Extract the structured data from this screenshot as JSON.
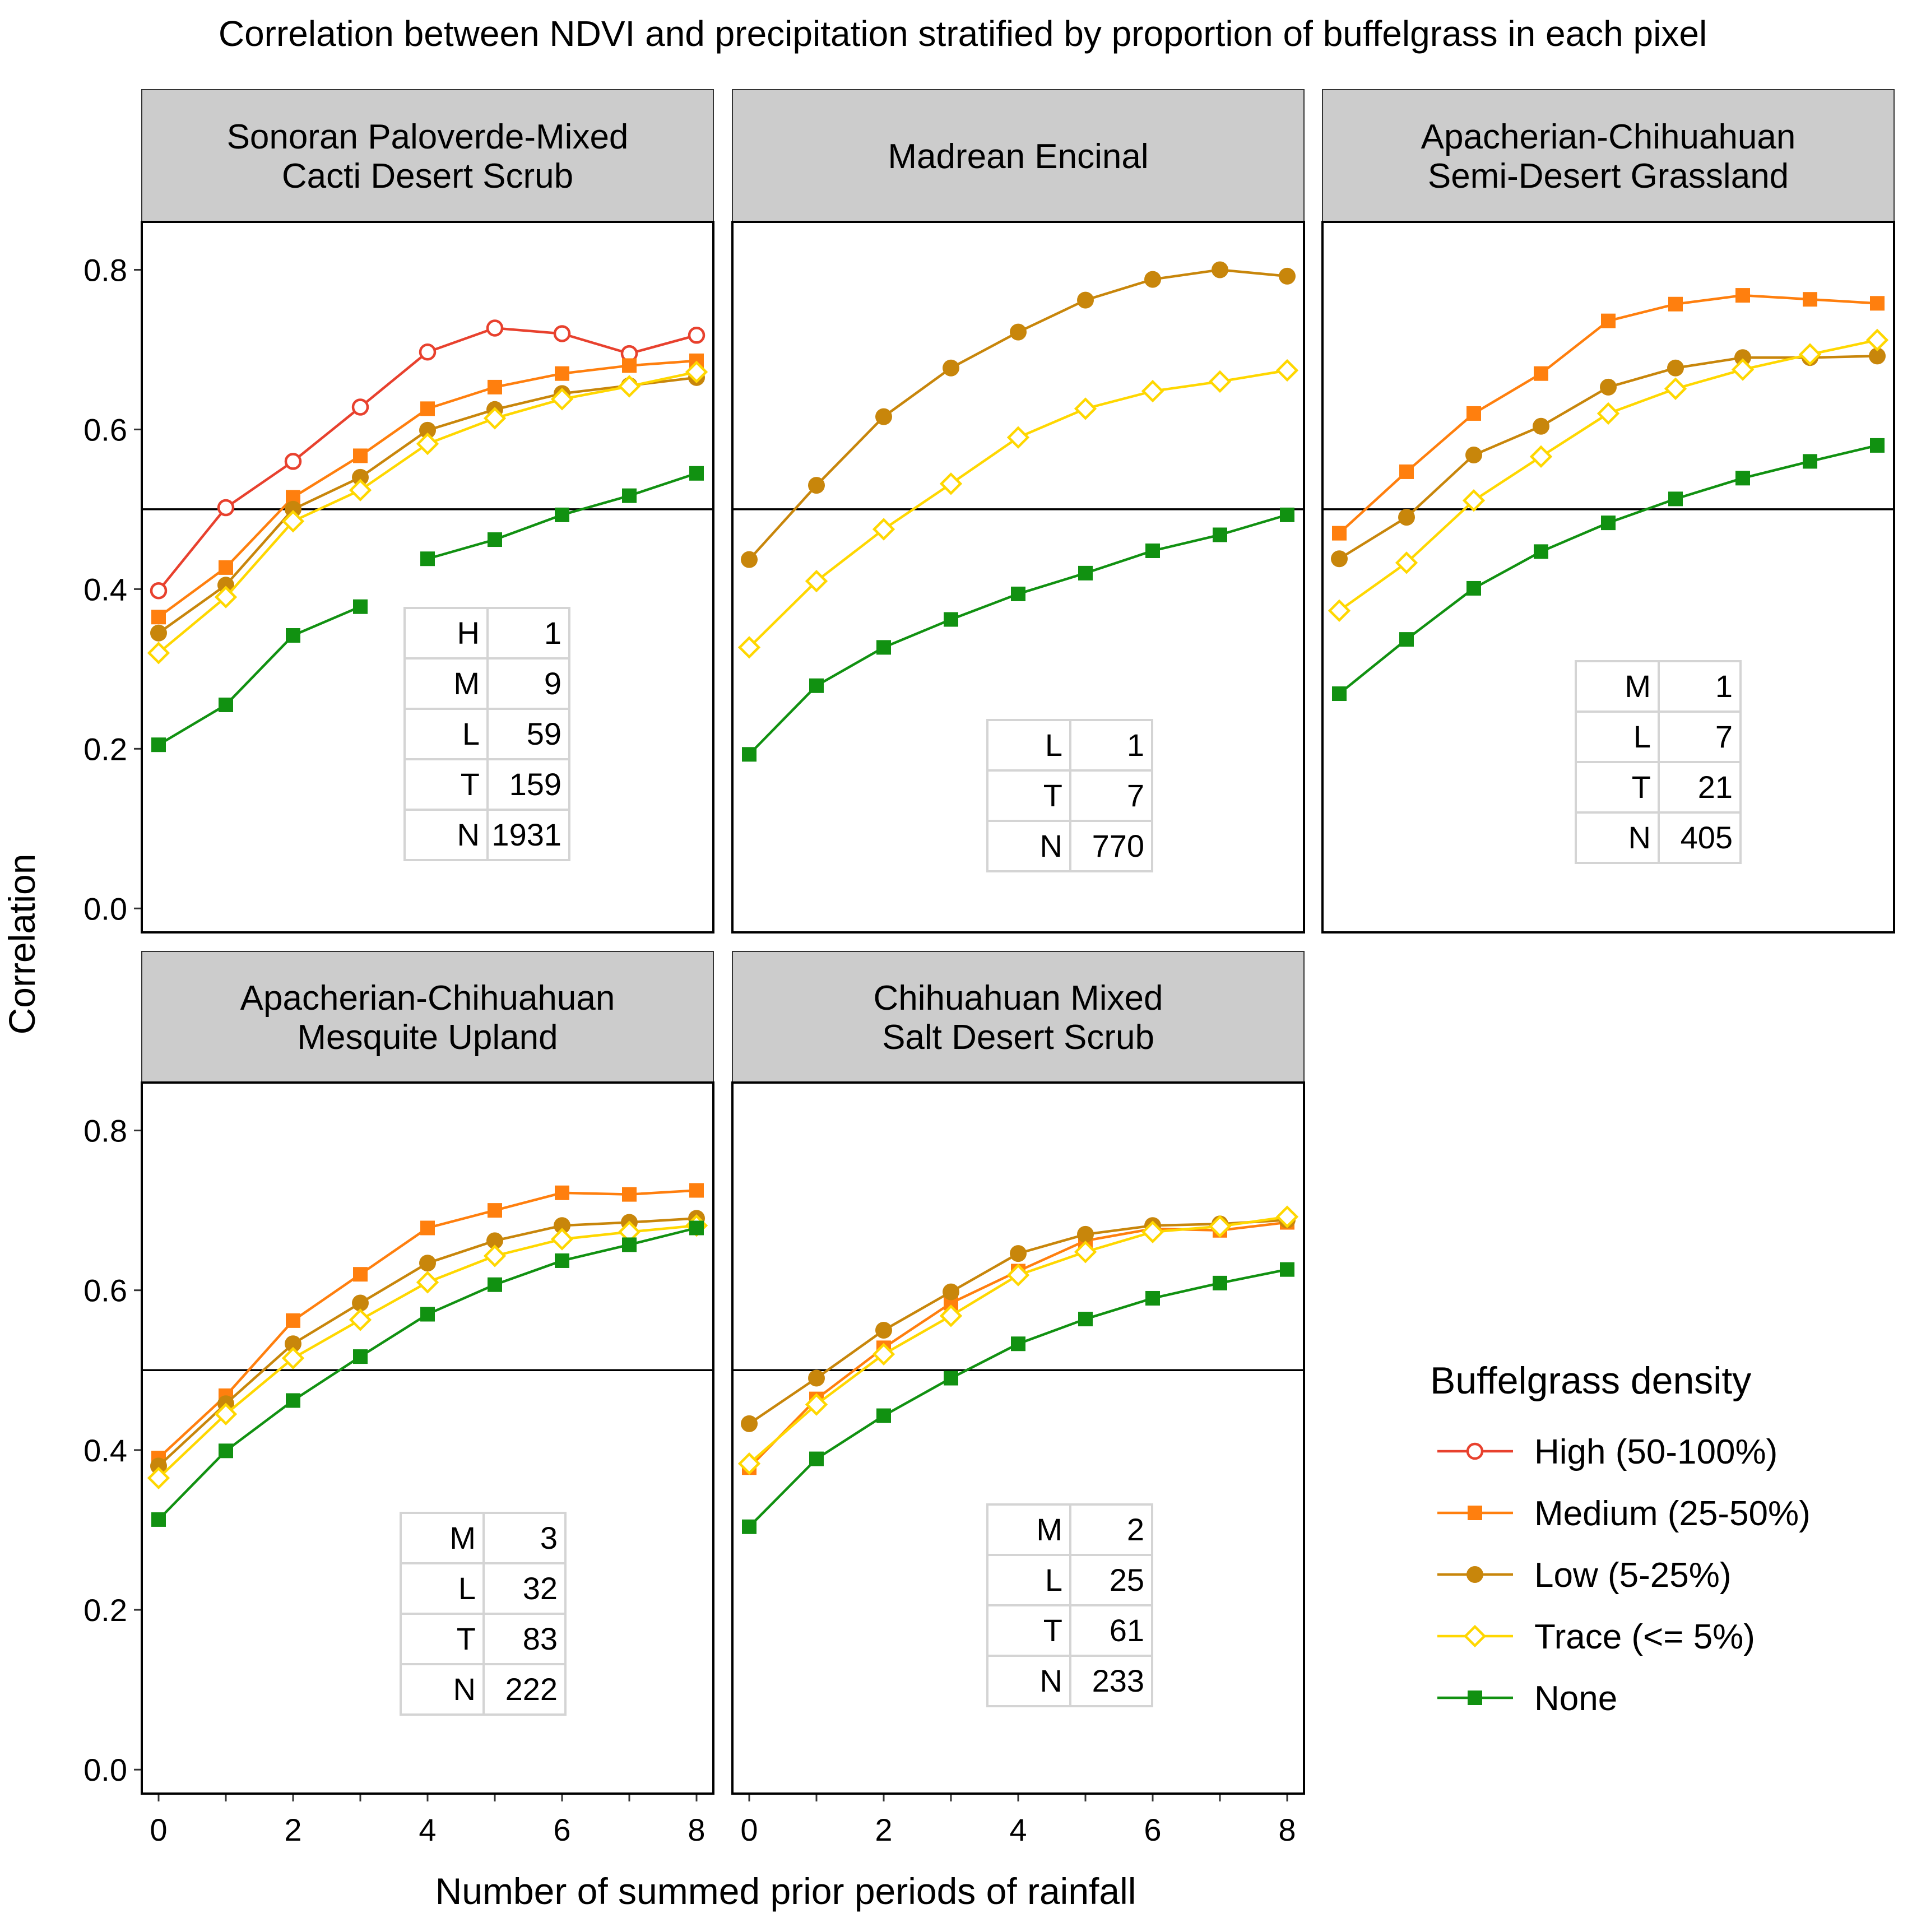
{
  "chart_data": {
    "type": "line",
    "title": "Correlation between NDVI and precipitation stratified by proportion of buffelgrass in each pixel",
    "xlabel": "Number of summed prior periods of rainfall",
    "ylabel": "Correlation",
    "x": [
      0,
      1,
      2,
      3,
      4,
      5,
      6,
      7,
      8
    ],
    "xticks": [
      "0",
      "2",
      "4",
      "6",
      "8"
    ],
    "yticks": [
      "0.0",
      "0.2",
      "0.4",
      "0.6",
      "0.8"
    ],
    "xlim": [
      -0.25,
      8.25
    ],
    "ylim": [
      -0.03,
      0.86
    ],
    "reference_line": 0.5,
    "legend": {
      "title": "Buffelgrass density",
      "position": "right",
      "entries": [
        {
          "key": "high",
          "label": "High (50-100%)",
          "color": "#E8412E",
          "marker": "open-circle"
        },
        {
          "key": "medium",
          "label": "Medium (25-50%)",
          "color": "#FF7F0E",
          "marker": "filled-square"
        },
        {
          "key": "low",
          "label": "Low (5-25%)",
          "color": "#C8860B",
          "marker": "filled-circle"
        },
        {
          "key": "trace",
          "label": "Trace (<= 5%)",
          "color": "#FFD700",
          "marker": "open-diamond"
        },
        {
          "key": "none",
          "label": "None",
          "color": "#119111",
          "marker": "filled-square"
        }
      ]
    },
    "panels": [
      {
        "title": [
          "Sonoran Paloverde-Mixed",
          "Cacti Desert Scrub"
        ],
        "series": [
          {
            "key": "high",
            "values": [
              0.398,
              0.502,
              0.56,
              0.628,
              0.697,
              0.727,
              0.72,
              0.695,
              0.718
            ]
          },
          {
            "key": "medium",
            "values": [
              0.365,
              0.427,
              0.515,
              0.567,
              0.626,
              0.653,
              0.67,
              0.68,
              0.686
            ]
          },
          {
            "key": "low",
            "values": [
              0.345,
              0.405,
              0.5,
              0.54,
              0.599,
              0.625,
              0.645,
              0.655,
              0.665
            ]
          },
          {
            "key": "trace",
            "values": [
              0.32,
              0.39,
              0.485,
              0.524,
              0.582,
              0.614,
              0.638,
              0.654,
              0.672
            ]
          },
          {
            "key": "none",
            "values": [
              0.205,
              0.255,
              0.342,
              0.378,
              null,
              0.438,
              0.462,
              0.493,
              0.517,
              0.545
            ],
            "x": [
              0,
              1,
              2,
              3,
              null,
              4,
              5,
              6,
              7,
              8
            ]
          }
        ],
        "table": [
          [
            "H",
            "1"
          ],
          [
            "M",
            "9"
          ],
          [
            "L",
            "59"
          ],
          [
            "T",
            "159"
          ],
          [
            "N",
            "1931"
          ]
        ]
      },
      {
        "title": [
          "Madrean Encinal"
        ],
        "series": [
          {
            "key": "low",
            "values": [
              0.437,
              0.53,
              0.616,
              0.677,
              0.722,
              0.762,
              0.788,
              0.8,
              0.792
            ]
          },
          {
            "key": "trace",
            "values": [
              0.327,
              0.41,
              0.475,
              0.532,
              0.59,
              0.626,
              0.648,
              0.66,
              0.674
            ]
          },
          {
            "key": "none",
            "values": [
              0.193,
              0.279,
              0.327,
              0.362,
              0.394,
              0.42,
              0.448,
              0.468,
              0.493
            ]
          }
        ],
        "table": [
          [
            "L",
            "1"
          ],
          [
            "T",
            "7"
          ],
          [
            "N",
            "770"
          ]
        ]
      },
      {
        "title": [
          "Apacherian-Chihuahuan",
          "Semi-Desert Grassland"
        ],
        "series": [
          {
            "key": "medium",
            "values": [
              0.47,
              0.547,
              0.62,
              0.67,
              0.736,
              0.757,
              0.768,
              0.763,
              0.758
            ]
          },
          {
            "key": "low",
            "values": [
              0.438,
              0.49,
              0.568,
              0.604,
              0.653,
              0.677,
              0.69,
              0.69,
              0.692
            ]
          },
          {
            "key": "trace",
            "values": [
              0.373,
              0.433,
              0.511,
              0.566,
              0.62,
              0.651,
              0.675,
              0.694,
              0.712
            ]
          },
          {
            "key": "none",
            "values": [
              0.269,
              0.337,
              0.401,
              0.447,
              0.483,
              0.513,
              0.539,
              0.56,
              0.58
            ]
          }
        ],
        "table": [
          [
            "M",
            "1"
          ],
          [
            "L",
            "7"
          ],
          [
            "T",
            "21"
          ],
          [
            "N",
            "405"
          ]
        ]
      },
      {
        "title": [
          "Apacherian-Chihuahuan",
          "Mesquite Upland"
        ],
        "series": [
          {
            "key": "medium",
            "values": [
              0.39,
              0.468,
              0.562,
              0.62,
              0.678,
              0.7,
              0.722,
              0.72,
              0.725
            ]
          },
          {
            "key": "low",
            "values": [
              0.38,
              0.458,
              0.533,
              0.584,
              0.634,
              0.662,
              0.681,
              0.685,
              0.69
            ]
          },
          {
            "key": "trace",
            "values": [
              0.365,
              0.445,
              0.515,
              0.563,
              0.61,
              0.643,
              0.664,
              0.673,
              0.681
            ]
          },
          {
            "key": "none",
            "values": [
              0.313,
              0.399,
              0.462,
              0.517,
              0.57,
              0.607,
              0.637,
              0.657,
              0.678
            ]
          }
        ],
        "table": [
          [
            "M",
            "3"
          ],
          [
            "L",
            "32"
          ],
          [
            "T",
            "83"
          ],
          [
            "N",
            "222"
          ]
        ]
      },
      {
        "title": [
          "Chihuahuan Mixed",
          "Salt Desert Scrub"
        ],
        "series": [
          {
            "key": "medium",
            "values": [
              0.378,
              0.464,
              0.528,
              0.584,
              0.624,
              0.662,
              0.677,
              0.675,
              0.685
            ]
          },
          {
            "key": "low",
            "values": [
              0.433,
              0.49,
              0.55,
              0.598,
              0.646,
              0.67,
              0.681,
              0.683,
              0.688
            ]
          },
          {
            "key": "trace",
            "values": [
              0.383,
              0.457,
              0.52,
              0.568,
              0.619,
              0.648,
              0.673,
              0.68,
              0.692
            ]
          },
          {
            "key": "none",
            "values": [
              0.304,
              0.389,
              0.443,
              0.49,
              0.533,
              0.564,
              0.59,
              0.609,
              0.626
            ]
          }
        ],
        "table": [
          [
            "M",
            "2"
          ],
          [
            "L",
            "25"
          ],
          [
            "T",
            "61"
          ],
          [
            "N",
            "233"
          ]
        ]
      }
    ]
  }
}
